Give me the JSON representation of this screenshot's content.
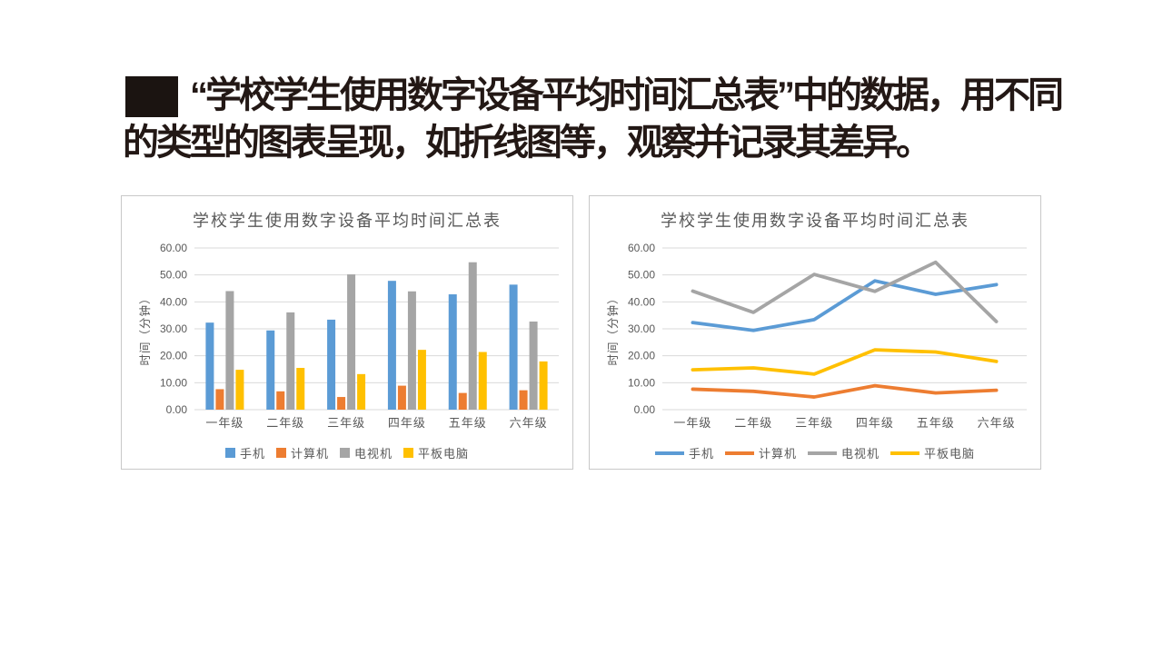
{
  "page": {
    "background": "#ffffff"
  },
  "header": {
    "line1": "“学校学生使用数字设备平均时间汇总表”中的数据，用不同",
    "line2": "的类型的图表呈现，如折线图等，观察并记录其差异。",
    "text_color": "#231815",
    "redaction_color": "#1b1411"
  },
  "palette": {
    "grid": "#d9d9d9",
    "chart_text": "#595959",
    "panel_border": "#c8c8c8"
  },
  "chart_data": [
    {
      "type": "bar",
      "title": "学校学生使用数字设备平均时间汇总表",
      "ylabel": "时间（分钟）",
      "xlabel": "",
      "categories": [
        "一年级",
        "二年级",
        "三年级",
        "四年级",
        "五年级",
        "六年级"
      ],
      "series": [
        {
          "name": "手机",
          "color": "#5B9BD5",
          "values": [
            32.3,
            29.4,
            33.4,
            47.8,
            42.8,
            46.4
          ]
        },
        {
          "name": "计算机",
          "color": "#ED7D31",
          "values": [
            7.6,
            6.8,
            4.7,
            8.9,
            6.2,
            7.2
          ]
        },
        {
          "name": "电视机",
          "color": "#A5A5A5",
          "values": [
            44.0,
            36.1,
            50.2,
            43.9,
            54.7,
            32.7
          ]
        },
        {
          "name": "平板电脑",
          "color": "#FFC000",
          "values": [
            14.8,
            15.5,
            13.2,
            22.2,
            21.4,
            17.9
          ]
        }
      ],
      "ylim": [
        0,
        60
      ],
      "ytick_step": 10,
      "ytick_decimals": 2,
      "grid": true,
      "legend_position": "bottom"
    },
    {
      "type": "line",
      "title": "学校学生使用数字设备平均时间汇总表",
      "ylabel": "时间（分钟）",
      "xlabel": "",
      "categories": [
        "一年级",
        "二年级",
        "三年级",
        "四年级",
        "五年级",
        "六年级"
      ],
      "series": [
        {
          "name": "手机",
          "color": "#5B9BD5",
          "values": [
            32.3,
            29.4,
            33.4,
            47.8,
            42.8,
            46.4
          ]
        },
        {
          "name": "计算机",
          "color": "#ED7D31",
          "values": [
            7.6,
            6.8,
            4.7,
            8.9,
            6.2,
            7.2
          ]
        },
        {
          "name": "电视机",
          "color": "#A5A5A5",
          "values": [
            44.0,
            36.1,
            50.2,
            43.9,
            54.7,
            32.7
          ]
        },
        {
          "name": "平板电脑",
          "color": "#FFC000",
          "values": [
            14.8,
            15.5,
            13.2,
            22.2,
            21.4,
            17.9
          ]
        }
      ],
      "ylim": [
        0,
        60
      ],
      "ytick_step": 10,
      "ytick_decimals": 2,
      "grid": true,
      "legend_position": "bottom"
    }
  ]
}
